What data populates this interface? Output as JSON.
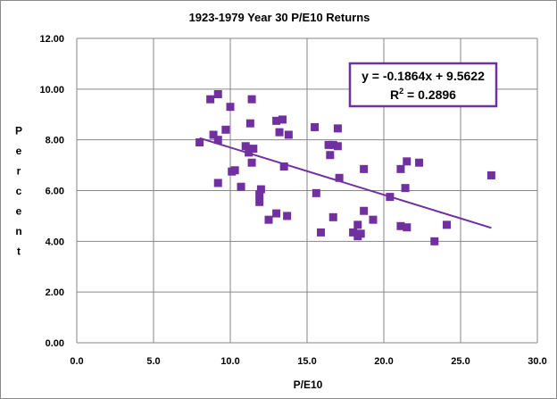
{
  "chart_data": {
    "type": "scatter",
    "title": "1923-1979 Year 30 P/E10 Returns",
    "xlabel": "P/E10",
    "ylabel": "Percent",
    "xlim": [
      0,
      30
    ],
    "ylim": [
      0,
      12
    ],
    "x_ticks": [
      "0.0",
      "5.0",
      "10.0",
      "15.0",
      "20.0",
      "25.0",
      "30.0"
    ],
    "y_ticks": [
      "0.00",
      "2.00",
      "4.00",
      "6.00",
      "8.00",
      "10.00",
      "12.00"
    ],
    "grid": true,
    "marker_color": "#7030a0",
    "trendline": {
      "equation": "y = -0.1864x + 9.5622",
      "r2_prefix": "R",
      "r2_exp": "2",
      "r2_value": " = 0.2896",
      "slope": -0.1864,
      "intercept": 9.5622,
      "x_range": [
        8.0,
        27.0
      ],
      "color": "#7030a0"
    },
    "points": [
      {
        "x": 8.0,
        "y": 7.9
      },
      {
        "x": 8.7,
        "y": 9.6
      },
      {
        "x": 8.9,
        "y": 8.2
      },
      {
        "x": 9.2,
        "y": 9.8
      },
      {
        "x": 9.2,
        "y": 8.0
      },
      {
        "x": 9.2,
        "y": 6.3
      },
      {
        "x": 9.7,
        "y": 8.4
      },
      {
        "x": 10.0,
        "y": 9.3
      },
      {
        "x": 10.1,
        "y": 6.75
      },
      {
        "x": 10.3,
        "y": 6.8
      },
      {
        "x": 10.7,
        "y": 6.15
      },
      {
        "x": 11.0,
        "y": 7.75
      },
      {
        "x": 11.2,
        "y": 7.5
      },
      {
        "x": 11.3,
        "y": 8.65
      },
      {
        "x": 11.4,
        "y": 9.6
      },
      {
        "x": 11.4,
        "y": 7.1
      },
      {
        "x": 11.5,
        "y": 7.65
      },
      {
        "x": 11.9,
        "y": 5.85
      },
      {
        "x": 11.9,
        "y": 5.55
      },
      {
        "x": 12.0,
        "y": 6.05
      },
      {
        "x": 12.5,
        "y": 4.85
      },
      {
        "x": 13.0,
        "y": 5.1
      },
      {
        "x": 13.0,
        "y": 8.75
      },
      {
        "x": 13.2,
        "y": 8.3
      },
      {
        "x": 13.4,
        "y": 8.8
      },
      {
        "x": 13.5,
        "y": 6.95
      },
      {
        "x": 13.7,
        "y": 5.0
      },
      {
        "x": 13.8,
        "y": 8.2
      },
      {
        "x": 15.5,
        "y": 8.5
      },
      {
        "x": 15.6,
        "y": 5.9
      },
      {
        "x": 15.9,
        "y": 4.35
      },
      {
        "x": 16.4,
        "y": 7.8
      },
      {
        "x": 16.5,
        "y": 7.4
      },
      {
        "x": 16.7,
        "y": 7.8
      },
      {
        "x": 16.7,
        "y": 4.95
      },
      {
        "x": 17.0,
        "y": 8.45
      },
      {
        "x": 17.0,
        "y": 7.75
      },
      {
        "x": 17.1,
        "y": 6.5
      },
      {
        "x": 18.0,
        "y": 4.35
      },
      {
        "x": 18.3,
        "y": 4.2
      },
      {
        "x": 18.3,
        "y": 4.65
      },
      {
        "x": 18.5,
        "y": 4.3
      },
      {
        "x": 18.7,
        "y": 6.85
      },
      {
        "x": 18.7,
        "y": 5.2
      },
      {
        "x": 19.3,
        "y": 4.85
      },
      {
        "x": 20.4,
        "y": 5.75
      },
      {
        "x": 21.1,
        "y": 6.85
      },
      {
        "x": 21.1,
        "y": 4.6
      },
      {
        "x": 21.4,
        "y": 6.1
      },
      {
        "x": 21.5,
        "y": 7.15
      },
      {
        "x": 21.5,
        "y": 4.55
      },
      {
        "x": 22.3,
        "y": 7.1
      },
      {
        "x": 23.3,
        "y": 4.0
      },
      {
        "x": 24.1,
        "y": 4.65
      },
      {
        "x": 27.0,
        "y": 6.6
      }
    ]
  }
}
